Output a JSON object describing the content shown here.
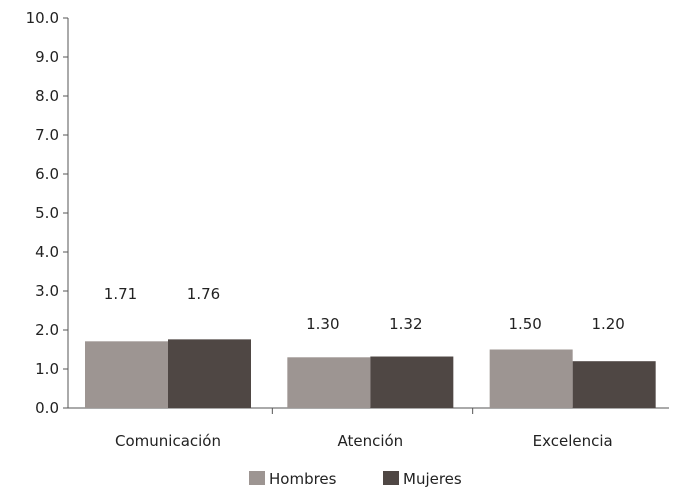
{
  "chart_data": {
    "type": "bar",
    "categories": [
      "Comunicación",
      "Atención",
      "Excelencia"
    ],
    "series": [
      {
        "name": "Hombres",
        "values": [
          1.71,
          1.3,
          1.5
        ],
        "color": "#9d9592"
      },
      {
        "name": "Mujeres",
        "values": [
          1.76,
          1.32,
          1.2
        ],
        "color": "#4f4744"
      }
    ],
    "data_labels": [
      [
        "1.71",
        "1.30",
        "1.50"
      ],
      [
        "1.76",
        "1.32",
        "1.20"
      ]
    ],
    "y_ticks": [
      "0.0",
      "1.0",
      "2.0",
      "3.0",
      "4.0",
      "5.0",
      "6.0",
      "7.0",
      "8.0",
      "9.0",
      "10.0"
    ],
    "ylim": [
      0,
      10
    ],
    "grid": false,
    "legend_position": "bottom-center",
    "title": "",
    "xlabel": "",
    "ylabel": ""
  }
}
